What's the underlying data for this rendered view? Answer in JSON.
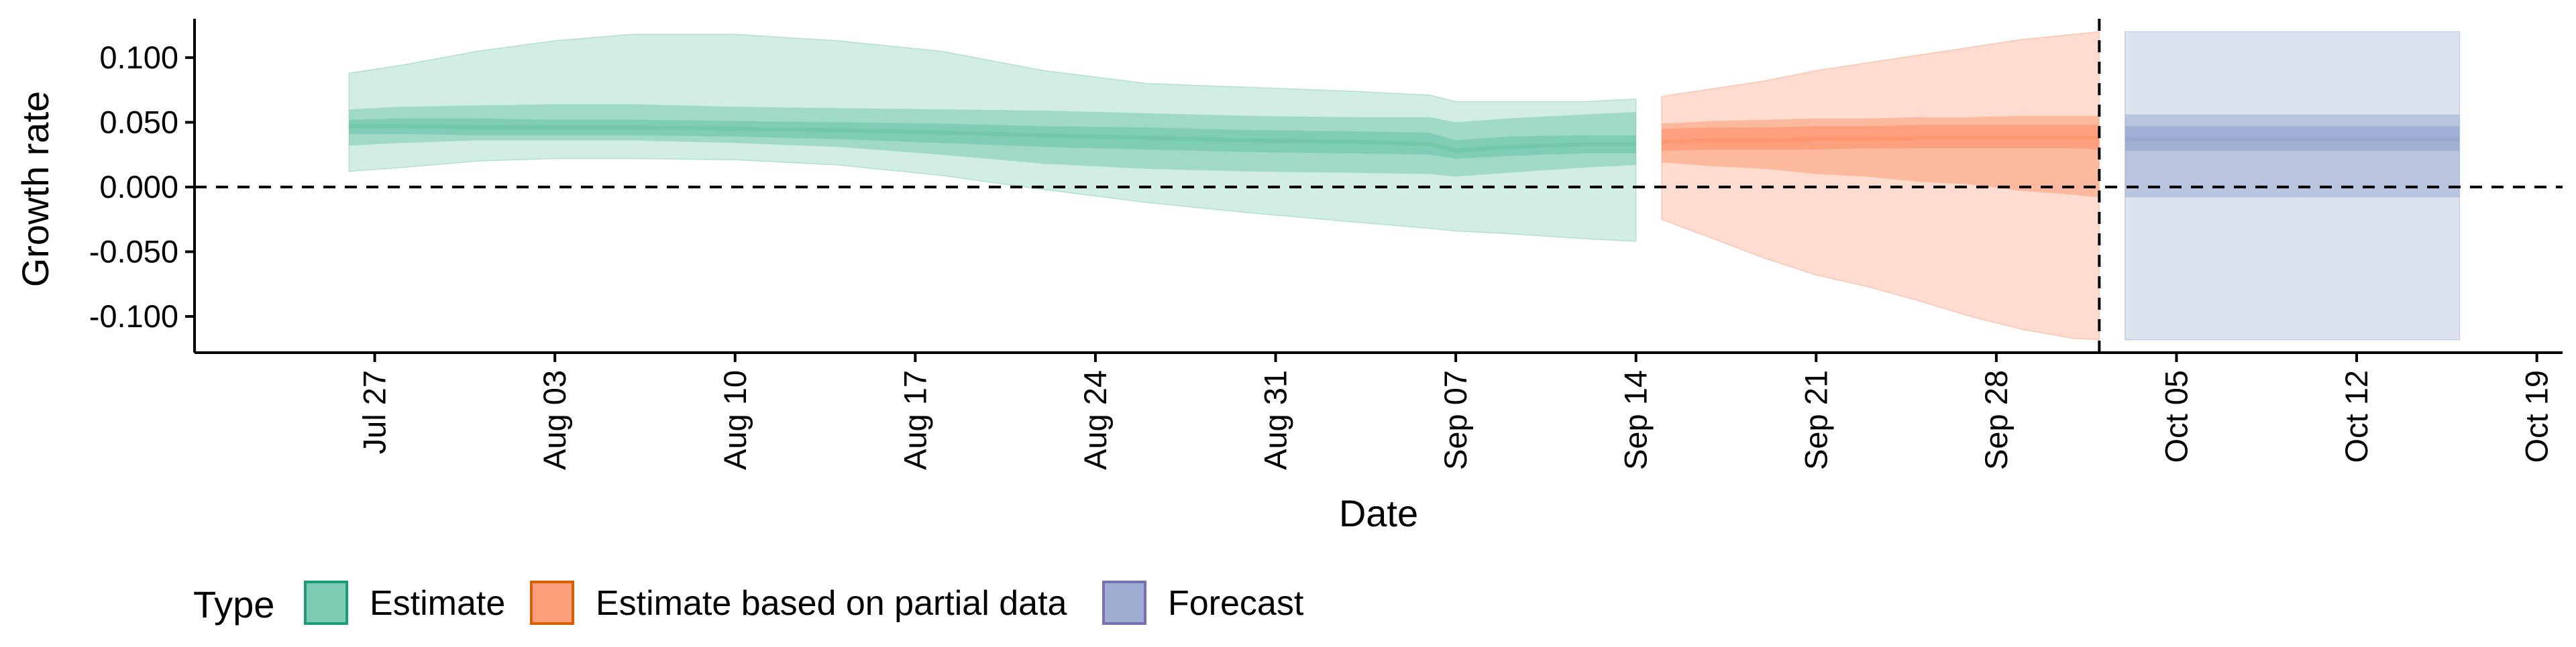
{
  "chart_data": {
    "type": "area",
    "xlabel": "Date",
    "ylabel": "Growth rate",
    "x_axis_type": "date",
    "xlim": [
      "2025-07-20",
      "2025-10-20"
    ],
    "ylim": [
      -0.128,
      0.13
    ],
    "x_ticks": [
      "2025-07-27",
      "2025-08-03",
      "2025-08-10",
      "2025-08-17",
      "2025-08-24",
      "2025-08-31",
      "2025-09-07",
      "2025-09-14",
      "2025-09-21",
      "2025-09-28",
      "2025-10-05",
      "2025-10-12",
      "2025-10-19"
    ],
    "x_tick_labels": [
      "Jul 27",
      "Aug 03",
      "Aug 10",
      "Aug 17",
      "Aug 24",
      "Aug 31",
      "Sep 07",
      "Sep 14",
      "Sep 21",
      "Sep 28",
      "Oct 05",
      "Oct 12",
      "Oct 19"
    ],
    "y_ticks": [
      0.1,
      0.05,
      0.0,
      -0.05,
      -0.1
    ],
    "y_tick_labels": [
      "0.100",
      "0.050",
      "0.000",
      "-0.050",
      "-0.100"
    ],
    "reference_lines": [
      {
        "axis": "y",
        "value": 0.0,
        "style": "dashed"
      },
      {
        "axis": "x",
        "value": "2025-10-02",
        "style": "dashed"
      }
    ],
    "legend": {
      "title": "Type",
      "placement": "bottom-left"
    },
    "series": [
      {
        "name": "Estimate",
        "color": "#1b9e77",
        "fill_color": "#66c2a5",
        "x": [
          "2025-07-26",
          "2025-07-28",
          "2025-07-31",
          "2025-08-03",
          "2025-08-06",
          "2025-08-10",
          "2025-08-14",
          "2025-08-18",
          "2025-08-22",
          "2025-08-26",
          "2025-08-30",
          "2025-09-03",
          "2025-09-06",
          "2025-09-07",
          "2025-09-09",
          "2025-09-12",
          "2025-09-14"
        ],
        "median": [
          0.047,
          0.047,
          0.046,
          0.046,
          0.046,
          0.045,
          0.044,
          0.042,
          0.04,
          0.038,
          0.036,
          0.035,
          0.033,
          0.028,
          0.031,
          0.033,
          0.033
        ],
        "lower_50": [
          0.041,
          0.041,
          0.04,
          0.04,
          0.04,
          0.039,
          0.037,
          0.034,
          0.031,
          0.029,
          0.027,
          0.026,
          0.025,
          0.022,
          0.024,
          0.026,
          0.026
        ],
        "upper_50": [
          0.052,
          0.053,
          0.053,
          0.052,
          0.052,
          0.051,
          0.05,
          0.049,
          0.047,
          0.046,
          0.044,
          0.043,
          0.042,
          0.036,
          0.039,
          0.04,
          0.04
        ],
        "lower_90": [
          0.032,
          0.034,
          0.036,
          0.036,
          0.036,
          0.034,
          0.031,
          0.025,
          0.018,
          0.014,
          0.012,
          0.011,
          0.01,
          0.008,
          0.011,
          0.015,
          0.017
        ],
        "upper_90": [
          0.06,
          0.062,
          0.063,
          0.064,
          0.064,
          0.062,
          0.061,
          0.06,
          0.059,
          0.057,
          0.055,
          0.054,
          0.054,
          0.05,
          0.053,
          0.056,
          0.058
        ],
        "lower_ci": [
          0.012,
          0.015,
          0.02,
          0.022,
          0.022,
          0.021,
          0.017,
          0.009,
          -0.002,
          -0.012,
          -0.02,
          -0.027,
          -0.032,
          -0.034,
          -0.036,
          -0.04,
          -0.042
        ],
        "upper_ci": [
          0.088,
          0.094,
          0.105,
          0.113,
          0.118,
          0.118,
          0.113,
          0.105,
          0.09,
          0.08,
          0.077,
          0.074,
          0.071,
          0.066,
          0.066,
          0.066,
          0.068
        ]
      },
      {
        "name": "Estimate based on partial data",
        "color": "#d95f02",
        "fill_color": "#fc8d62",
        "x": [
          "2025-09-15",
          "2025-09-17",
          "2025-09-19",
          "2025-09-21",
          "2025-09-23",
          "2025-09-25",
          "2025-09-27",
          "2025-09-29",
          "2025-10-01",
          "2025-10-02"
        ],
        "median": [
          0.035,
          0.036,
          0.036,
          0.037,
          0.037,
          0.038,
          0.038,
          0.038,
          0.038,
          0.038
        ],
        "lower_50": [
          0.028,
          0.029,
          0.029,
          0.029,
          0.03,
          0.03,
          0.03,
          0.03,
          0.03,
          0.029
        ],
        "upper_50": [
          0.045,
          0.046,
          0.046,
          0.047,
          0.047,
          0.048,
          0.048,
          0.048,
          0.048,
          0.048
        ],
        "lower_90": [
          0.019,
          0.016,
          0.014,
          0.01,
          0.008,
          0.004,
          0.002,
          -0.003,
          -0.006,
          -0.008
        ],
        "upper_90": [
          0.049,
          0.051,
          0.052,
          0.053,
          0.053,
          0.054,
          0.054,
          0.055,
          0.055,
          0.055
        ],
        "lower_ci": [
          -0.025,
          -0.04,
          -0.055,
          -0.068,
          -0.077,
          -0.088,
          -0.1,
          -0.11,
          -0.117,
          -0.118
        ],
        "upper_ci": [
          0.07,
          0.076,
          0.082,
          0.09,
          0.096,
          0.102,
          0.108,
          0.114,
          0.118,
          0.12
        ]
      },
      {
        "name": "Forecast",
        "color": "#7570b3",
        "fill_color": "#8da0cb",
        "x": [
          "2025-10-03",
          "2025-10-16"
        ],
        "median": [
          0.037,
          0.037
        ],
        "lower_50": [
          0.028,
          0.028
        ],
        "upper_50": [
          0.047,
          0.047
        ],
        "lower_90": [
          -0.008,
          -0.008
        ],
        "upper_90": [
          0.056,
          0.056
        ],
        "lower_ci": [
          -0.118,
          -0.118
        ],
        "upper_ci": [
          0.12,
          0.12
        ]
      }
    ]
  }
}
